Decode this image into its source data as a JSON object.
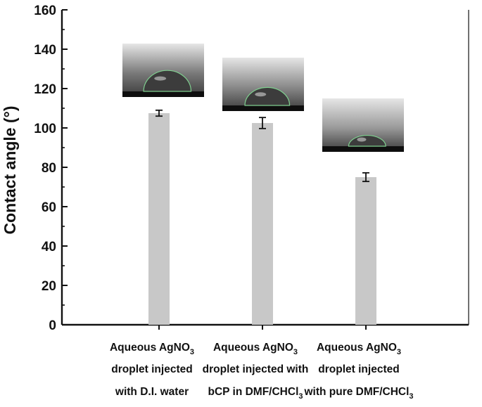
{
  "chart_data": {
    "type": "bar",
    "title": "",
    "xlabel": "",
    "ylabel": "Contact angle (°)",
    "ylim": [
      0,
      160
    ],
    "yticks": [
      0,
      20,
      40,
      60,
      80,
      100,
      120,
      140,
      160
    ],
    "grid": false,
    "legend": "none",
    "bar_color": "#c8c8c8",
    "categories": [
      {
        "lines": [
          {
            "text": "Aqueous AgNO",
            "sub": "3"
          },
          {
            "text": "droplet injected",
            "sub": ""
          },
          {
            "text": "with D.I. water",
            "sub": ""
          }
        ]
      },
      {
        "lines": [
          {
            "text": "Aqueous AgNO",
            "sub": "3"
          },
          {
            "text": "droplet injected with",
            "sub": ""
          },
          {
            "text": "bCP in DMF/CHCl",
            "sub": "3"
          }
        ]
      },
      {
        "lines": [
          {
            "text": "Aqueous AgNO",
            "sub": "3"
          },
          {
            "text": "droplet injected",
            "sub": ""
          },
          {
            "text": "with pure DMF/CHCl",
            "sub": "3"
          }
        ]
      }
    ],
    "values": [
      107.5,
      102.5,
      75
    ],
    "errors": [
      1.5,
      2.8,
      2.2
    ],
    "insets": [
      {
        "name": "droplet-photo-di-water",
        "bg": "#7a7a7a",
        "droplet_rel": 0.68
      },
      {
        "name": "droplet-photo-bcp",
        "bg": "#8a8a8a",
        "droplet_rel": 0.62
      },
      {
        "name": "droplet-photo-pure-solvent",
        "bg": "#9a9a9a",
        "droplet_rel": 0.45
      }
    ]
  }
}
